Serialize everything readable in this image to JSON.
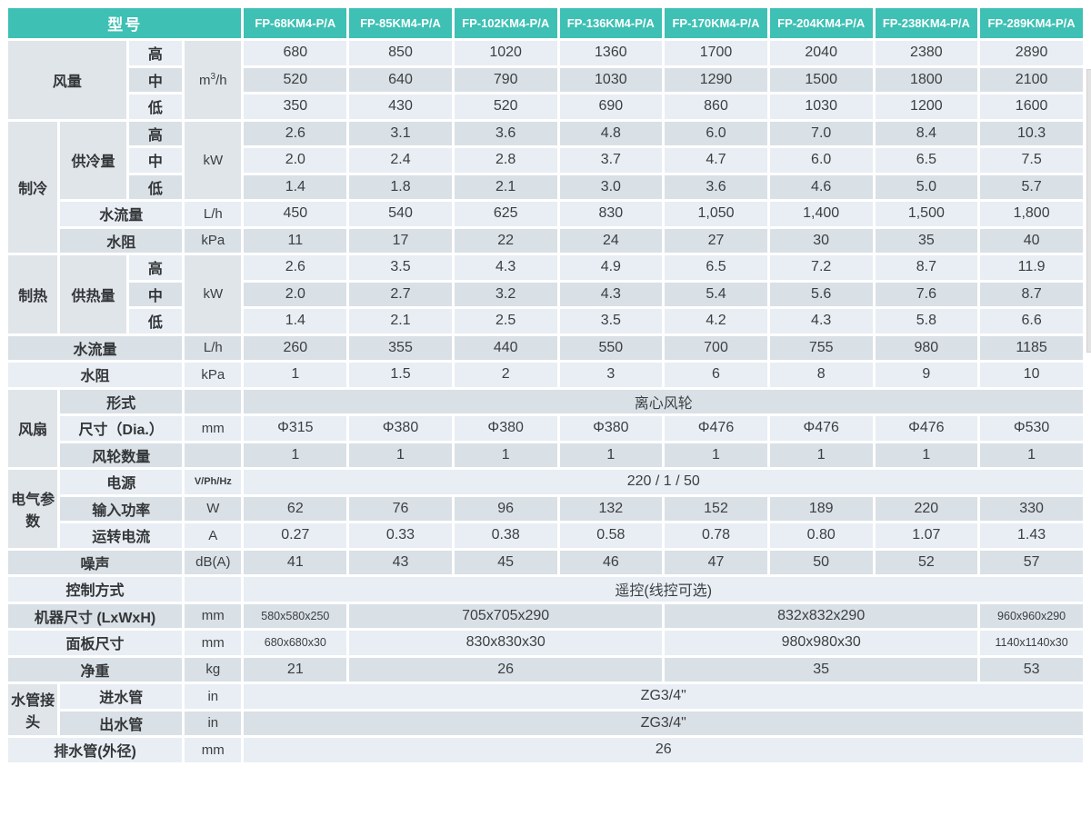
{
  "palette": {
    "header_teal": "#3EC0B4",
    "row_light": "#E8EEF3",
    "row_dark": "#D9E0E6",
    "label_merged": "#E0E5EA",
    "text_dark": "#3a3f42",
    "gap_white": "#FFFFFF"
  },
  "table": {
    "header": {
      "title": "型号",
      "models": [
        "FP-68KM4-P/A",
        "FP-85KM4-P/A",
        "FP-102KM4-P/A",
        "FP-136KM4-P/A",
        "FP-170KM4-P/A",
        "FP-204KM4-P/A",
        "FP-238KM4-P/A",
        "FP-289KM4-P/A"
      ]
    },
    "rows": [
      {
        "cells": [
          {
            "t": "风量",
            "cs": 2,
            "rs": 3,
            "k": "group"
          },
          {
            "t": "高",
            "k": "level"
          },
          {
            "t": "m³/h",
            "rs": 3,
            "k": "unit"
          },
          {
            "t": "680"
          },
          {
            "t": "850"
          },
          {
            "t": "1020"
          },
          {
            "t": "1360"
          },
          {
            "t": "1700"
          },
          {
            "t": "2040"
          },
          {
            "t": "2380"
          },
          {
            "t": "2890"
          }
        ]
      },
      {
        "cells": [
          {
            "t": "中",
            "k": "level"
          },
          {
            "t": "520"
          },
          {
            "t": "640"
          },
          {
            "t": "790"
          },
          {
            "t": "1030"
          },
          {
            "t": "1290"
          },
          {
            "t": "1500"
          },
          {
            "t": "1800"
          },
          {
            "t": "2100"
          }
        ]
      },
      {
        "cells": [
          {
            "t": "低",
            "k": "level"
          },
          {
            "t": "350"
          },
          {
            "t": "430"
          },
          {
            "t": "520"
          },
          {
            "t": "690"
          },
          {
            "t": "860"
          },
          {
            "t": "1030"
          },
          {
            "t": "1200"
          },
          {
            "t": "1600"
          }
        ]
      },
      {
        "cells": [
          {
            "t": "制冷",
            "rs": 5,
            "k": "group"
          },
          {
            "t": "供冷量",
            "rs": 3,
            "k": "group"
          },
          {
            "t": "高",
            "k": "level"
          },
          {
            "t": "kW",
            "rs": 3,
            "k": "unit"
          },
          {
            "t": "2.6"
          },
          {
            "t": "3.1"
          },
          {
            "t": "3.6"
          },
          {
            "t": "4.8"
          },
          {
            "t": "6.0"
          },
          {
            "t": "7.0"
          },
          {
            "t": "8.4"
          },
          {
            "t": "10.3"
          }
        ]
      },
      {
        "cells": [
          {
            "t": "中",
            "k": "level"
          },
          {
            "t": "2.0"
          },
          {
            "t": "2.4"
          },
          {
            "t": "2.8"
          },
          {
            "t": "3.7"
          },
          {
            "t": "4.7"
          },
          {
            "t": "6.0"
          },
          {
            "t": "6.5"
          },
          {
            "t": "7.5"
          }
        ]
      },
      {
        "cells": [
          {
            "t": "低",
            "k": "level"
          },
          {
            "t": "1.4"
          },
          {
            "t": "1.8"
          },
          {
            "t": "2.1"
          },
          {
            "t": "3.0"
          },
          {
            "t": "3.6"
          },
          {
            "t": "4.6"
          },
          {
            "t": "5.0"
          },
          {
            "t": "5.7"
          }
        ]
      },
      {
        "cells": [
          {
            "t": "水流量",
            "cs": 2,
            "k": "label"
          },
          {
            "t": "L/h",
            "k": "unit"
          },
          {
            "t": "450"
          },
          {
            "t": "540"
          },
          {
            "t": "625"
          },
          {
            "t": "830"
          },
          {
            "t": "1,050"
          },
          {
            "t": "1,400"
          },
          {
            "t": "1,500"
          },
          {
            "t": "1,800"
          }
        ]
      },
      {
        "cells": [
          {
            "t": "水阻",
            "cs": 2,
            "k": "label"
          },
          {
            "t": "kPa",
            "k": "unit"
          },
          {
            "t": "11"
          },
          {
            "t": "17"
          },
          {
            "t": "22"
          },
          {
            "t": "24"
          },
          {
            "t": "27"
          },
          {
            "t": "30"
          },
          {
            "t": "35"
          },
          {
            "t": "40"
          }
        ]
      },
      {
        "cells": [
          {
            "t": "制热",
            "rs": 3,
            "k": "group"
          },
          {
            "t": "供热量",
            "rs": 3,
            "k": "group"
          },
          {
            "t": "高",
            "k": "level"
          },
          {
            "t": "kW",
            "rs": 3,
            "k": "unit"
          },
          {
            "t": "2.6"
          },
          {
            "t": "3.5"
          },
          {
            "t": "4.3"
          },
          {
            "t": "4.9"
          },
          {
            "t": "6.5"
          },
          {
            "t": "7.2"
          },
          {
            "t": "8.7"
          },
          {
            "t": "11.9"
          }
        ]
      },
      {
        "cells": [
          {
            "t": "中",
            "k": "level"
          },
          {
            "t": "2.0"
          },
          {
            "t": "2.7"
          },
          {
            "t": "3.2"
          },
          {
            "t": "4.3"
          },
          {
            "t": "5.4"
          },
          {
            "t": "5.6"
          },
          {
            "t": "7.6"
          },
          {
            "t": "8.7"
          }
        ]
      },
      {
        "cells": [
          {
            "t": "低",
            "k": "level"
          },
          {
            "t": "1.4"
          },
          {
            "t": "2.1"
          },
          {
            "t": "2.5"
          },
          {
            "t": "3.5"
          },
          {
            "t": "4.2"
          },
          {
            "t": "4.3"
          },
          {
            "t": "5.8"
          },
          {
            "t": "6.6"
          }
        ]
      },
      {
        "cells": [
          {
            "t": "水流量",
            "cs": 3,
            "k": "label"
          },
          {
            "t": "L/h",
            "k": "unit"
          },
          {
            "t": "260"
          },
          {
            "t": "355"
          },
          {
            "t": "440"
          },
          {
            "t": "550"
          },
          {
            "t": "700"
          },
          {
            "t": "755"
          },
          {
            "t": "980"
          },
          {
            "t": "1185"
          }
        ]
      },
      {
        "cells": [
          {
            "t": "水阻",
            "cs": 3,
            "k": "label"
          },
          {
            "t": "kPa",
            "k": "unit"
          },
          {
            "t": "1"
          },
          {
            "t": "1.5"
          },
          {
            "t": "2"
          },
          {
            "t": "3"
          },
          {
            "t": "6"
          },
          {
            "t": "8"
          },
          {
            "t": "9"
          },
          {
            "t": "10"
          }
        ]
      },
      {
        "cells": [
          {
            "t": "风扇",
            "rs": 3,
            "k": "group"
          },
          {
            "t": "形式",
            "cs": 2,
            "k": "label"
          },
          {
            "t": "",
            "k": "unit"
          },
          {
            "t": "离心风轮",
            "cs": 8
          }
        ]
      },
      {
        "cells": [
          {
            "t": "尺寸（Dia.）",
            "cs": 2,
            "k": "label"
          },
          {
            "t": "mm",
            "k": "unit"
          },
          {
            "t": "Φ315"
          },
          {
            "t": "Φ380"
          },
          {
            "t": "Φ380"
          },
          {
            "t": "Φ380"
          },
          {
            "t": "Φ476"
          },
          {
            "t": "Φ476"
          },
          {
            "t": "Φ476"
          },
          {
            "t": "Φ530"
          }
        ]
      },
      {
        "cells": [
          {
            "t": "风轮数量",
            "cs": 2,
            "k": "label"
          },
          {
            "t": "",
            "k": "unit"
          },
          {
            "t": "1"
          },
          {
            "t": "1"
          },
          {
            "t": "1"
          },
          {
            "t": "1"
          },
          {
            "t": "1"
          },
          {
            "t": "1"
          },
          {
            "t": "1"
          },
          {
            "t": "1"
          }
        ]
      },
      {
        "cells": [
          {
            "t": "电气参数",
            "rs": 3,
            "k": "group",
            "wrap": true
          },
          {
            "t": "电源",
            "cs": 2,
            "k": "label"
          },
          {
            "t": "V/Ph/Hz",
            "k": "unit",
            "sm": true
          },
          {
            "t": "220 / 1 / 50",
            "cs": 8
          }
        ]
      },
      {
        "cells": [
          {
            "t": "输入功率",
            "cs": 2,
            "k": "label"
          },
          {
            "t": "W",
            "k": "unit"
          },
          {
            "t": "62"
          },
          {
            "t": "76"
          },
          {
            "t": "96"
          },
          {
            "t": "132"
          },
          {
            "t": "152"
          },
          {
            "t": "189"
          },
          {
            "t": "220"
          },
          {
            "t": "330"
          }
        ]
      },
      {
        "cells": [
          {
            "t": "运转电流",
            "cs": 2,
            "k": "label"
          },
          {
            "t": "A",
            "k": "unit"
          },
          {
            "t": "0.27"
          },
          {
            "t": "0.33"
          },
          {
            "t": "0.38"
          },
          {
            "t": "0.58"
          },
          {
            "t": "0.78"
          },
          {
            "t": "0.80"
          },
          {
            "t": "1.07"
          },
          {
            "t": "1.43"
          }
        ]
      },
      {
        "cells": [
          {
            "t": "噪声",
            "cs": 3,
            "k": "label"
          },
          {
            "t": "dB(A)",
            "k": "unit"
          },
          {
            "t": "41"
          },
          {
            "t": "43"
          },
          {
            "t": "45"
          },
          {
            "t": "46"
          },
          {
            "t": "47"
          },
          {
            "t": "50"
          },
          {
            "t": "52"
          },
          {
            "t": "57"
          }
        ]
      },
      {
        "cells": [
          {
            "t": "控制方式",
            "cs": 3,
            "k": "label"
          },
          {
            "t": "",
            "k": "unit"
          },
          {
            "t": "遥控(线控可选)",
            "cs": 8
          }
        ]
      },
      {
        "cells": [
          {
            "t": "机器尺寸 (LxWxH)",
            "cs": 3,
            "k": "label"
          },
          {
            "t": "mm",
            "k": "unit"
          },
          {
            "t": "580x580x250",
            "sm": true
          },
          {
            "t": "705x705x290",
            "cs": 3
          },
          {
            "t": "832x832x290",
            "cs": 3
          },
          {
            "t": "960x960x290",
            "sm": true
          }
        ]
      },
      {
        "cells": [
          {
            "t": "面板尺寸",
            "cs": 3,
            "k": "label"
          },
          {
            "t": "mm",
            "k": "unit"
          },
          {
            "t": "680x680x30",
            "sm": true
          },
          {
            "t": "830x830x30",
            "cs": 3
          },
          {
            "t": "980x980x30",
            "cs": 3
          },
          {
            "t": "1140x1140x30",
            "sm": true
          }
        ]
      },
      {
        "cells": [
          {
            "t": "净重",
            "cs": 3,
            "k": "label"
          },
          {
            "t": "kg",
            "k": "unit"
          },
          {
            "t": "21"
          },
          {
            "t": "26",
            "cs": 3
          },
          {
            "t": "35",
            "cs": 3
          },
          {
            "t": "53"
          }
        ]
      },
      {
        "cells": [
          {
            "t": "水管接头",
            "rs": 2,
            "k": "group",
            "wrap": true
          },
          {
            "t": "进水管",
            "cs": 2,
            "k": "label"
          },
          {
            "t": "in",
            "k": "unit"
          },
          {
            "t": "ZG3/4\"",
            "cs": 8
          }
        ]
      },
      {
        "cells": [
          {
            "t": "出水管",
            "cs": 2,
            "k": "label"
          },
          {
            "t": "in",
            "k": "unit"
          },
          {
            "t": "ZG3/4\"",
            "cs": 8
          }
        ]
      },
      {
        "cells": [
          {
            "t": "排水管(外径)",
            "cs": 3,
            "k": "label"
          },
          {
            "t": "mm",
            "k": "unit"
          },
          {
            "t": "26",
            "cs": 8
          }
        ]
      }
    ]
  }
}
